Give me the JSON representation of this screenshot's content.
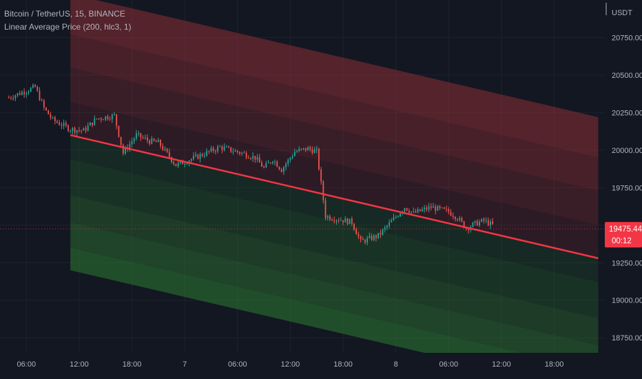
{
  "header": {
    "symbol": "Bitcoin / TetherUS, 15, BINANCE",
    "indicator": "Linear Average Price (200, hlc3, 1)"
  },
  "currency": "USDT",
  "last_price": "19475.44",
  "countdown": "00:12",
  "colors": {
    "background": "#131722",
    "up_candle": "#26a69a",
    "down_candle": "#ef5350",
    "regression": "#f23645",
    "upper_band": "#a3323a",
    "lower_band": "#2e7d32"
  },
  "chart_data": {
    "type": "candlestick",
    "title": "Bitcoin / TetherUS, 15, BINANCE",
    "indicator": "Linear Average Price (200, hlc3, 1)",
    "y_ticks": [
      "20750.00",
      "20500.00",
      "20250.00",
      "20000.00",
      "19750.00",
      "19250.00",
      "19000.00",
      "18750.00"
    ],
    "x_ticks": [
      "06:00",
      "12:00",
      "18:00",
      "7",
      "06:00",
      "12:00",
      "18:00",
      "8",
      "06:00",
      "12:00",
      "18:00"
    ],
    "ylim": [
      18650,
      21000
    ],
    "x_range": [
      "6 Oct 03:00",
      "8 Oct 23:45"
    ],
    "regression_line": {
      "x": [
        "6 Oct 11:00",
        "8 Oct 23:00"
      ],
      "y": [
        20100,
        19280
      ]
    },
    "band_offsets": [
      -900,
      -750,
      -580,
      -400,
      -160,
      0,
      220,
      450,
      670,
      940
    ],
    "series": [
      {
        "name": "BTCUSDT close",
        "x": [
          "6 Oct 04:00",
          "6 Oct 07:00",
          "6 Oct 08:00",
          "6 Oct 09:00",
          "6 Oct 11:00",
          "6 Oct 12:30",
          "6 Oct 14:00",
          "6 Oct 16:00",
          "6 Oct 17:00",
          "6 Oct 17:45",
          "6 Oct 18:30",
          "6 Oct 20:00",
          "6 Oct 21:00",
          "6 Oct 23:00",
          "7 Oct 02:00",
          "7 Oct 04:00",
          "7 Oct 06:30",
          "7 Oct 08:00",
          "7 Oct 09:00",
          "7 Oct 10:00",
          "7 Oct 11:00",
          "7 Oct 12:30",
          "7 Oct 14:00",
          "7 Oct 15:00",
          "7 Oct 16:00",
          "7 Oct 19:00",
          "7 Oct 20:00",
          "7 Oct 22:00",
          "8 Oct 01:00",
          "8 Oct 02:00",
          "8 Oct 04:00",
          "8 Oct 06:00",
          "8 Oct 07:00",
          "8 Oct 08:00",
          "8 Oct 09:00",
          "8 Oct 10:00",
          "8 Oct 11:00"
        ],
        "y": [
          20350,
          20420,
          20280,
          20200,
          20140,
          20130,
          20210,
          20230,
          19980,
          20040,
          20100,
          20060,
          20050,
          19900,
          19970,
          20020,
          19980,
          19950,
          19880,
          19940,
          19870,
          19990,
          20010,
          19990,
          19560,
          19520,
          19390,
          19430,
          19620,
          19580,
          19620,
          19590,
          19550,
          19480,
          19510,
          19530,
          19500
        ]
      }
    ]
  }
}
